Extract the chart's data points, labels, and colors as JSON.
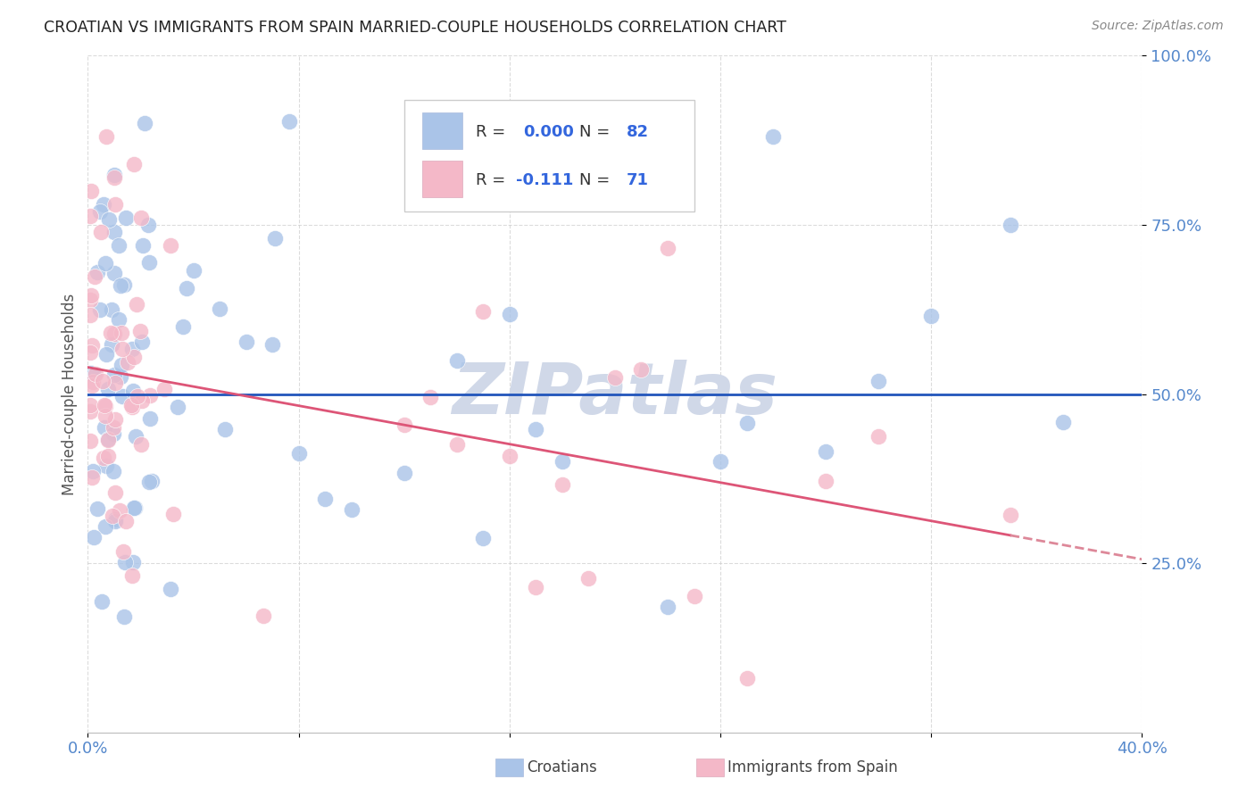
{
  "title": "CROATIAN VS IMMIGRANTS FROM SPAIN MARRIED-COUPLE HOUSEHOLDS CORRELATION CHART",
  "source": "Source: ZipAtlas.com",
  "xlabel_croatians": "Croatians",
  "xlabel_immigrants": "Immigrants from Spain",
  "ylabel": "Married-couple Households",
  "xmin": 0.0,
  "xmax": 0.4,
  "ymin": 0.0,
  "ymax": 1.0,
  "blue_R": "0.000",
  "blue_N": "82",
  "pink_R": "-0.111",
  "pink_N": "71",
  "blue_color": "#aac4e8",
  "pink_color": "#f4b8c8",
  "blue_line_color": "#2255bb",
  "pink_line_color": "#dd5577",
  "pink_dash_color": "#dd8899",
  "text_blue": "#3366dd",
  "text_dark": "#333333",
  "watermark_color": "#d0d8e8",
  "grid_color": "#cccccc",
  "axis_tick_color": "#5588cc"
}
